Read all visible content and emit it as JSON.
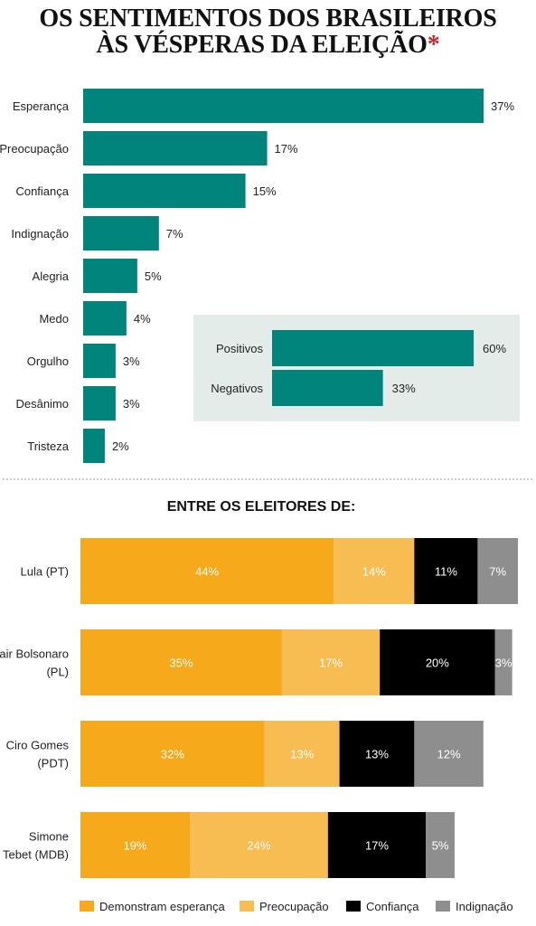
{
  "title": {
    "line1": "OS SENTIMENTOS DOS BRASILEIROS",
    "line2": "ÀS VÉSPERAS DA ELEIÇÃO",
    "asterisk": "*"
  },
  "colors": {
    "teal": "#00847b",
    "inset_bg": "#e3ece9",
    "esperanca": "#f5a91b",
    "preocupacao": "#f7bd52",
    "confianca": "#000000",
    "indignacao": "#8e8e8e"
  },
  "chart_data": [
    {
      "type": "bar",
      "orientation": "horizontal",
      "categories": [
        "Esperança",
        "Preocupação",
        "Confiança",
        "Indignação",
        "Alegria",
        "Medo",
        "Orgulho",
        "Desânimo",
        "Tristeza"
      ],
      "values": [
        37,
        17,
        15,
        7,
        5,
        4,
        3,
        3,
        2
      ],
      "labels": [
        "37%",
        "17%",
        "15%",
        "7%",
        "5%",
        "4%",
        "3%",
        "3%",
        "2%"
      ]
    },
    {
      "type": "bar",
      "orientation": "horizontal",
      "categories": [
        "Positivos",
        "Negativos"
      ],
      "values": [
        60,
        33
      ],
      "labels": [
        "60%",
        "33%"
      ]
    },
    {
      "type": "bar",
      "stacked": true,
      "orientation": "horizontal",
      "title": "ENTRE OS ELEITORES DE:",
      "categories": [
        [
          "Lula (PT)"
        ],
        [
          "Jair Bolsonaro",
          "(PL)"
        ],
        [
          "Ciro Gomes",
          "(PDT)"
        ],
        [
          "Simone",
          "Tebet (MDB)"
        ]
      ],
      "series": [
        {
          "name": "Demonstram esperança",
          "values": [
            44,
            35,
            32,
            19
          ],
          "labels": [
            "44%",
            "35%",
            "32%",
            "19%"
          ]
        },
        {
          "name": "Preocupação",
          "values": [
            14,
            17,
            13,
            24
          ],
          "labels": [
            "14%",
            "17%",
            "13%",
            "24%"
          ]
        },
        {
          "name": "Confiança",
          "values": [
            11,
            20,
            13,
            17
          ],
          "labels": [
            "11%",
            "20%",
            "13%",
            "17%"
          ]
        },
        {
          "name": "Indignação",
          "values": [
            7,
            3,
            12,
            5
          ],
          "labels": [
            "7%",
            "3%",
            "12%",
            "5%"
          ]
        }
      ],
      "legend": "bottom"
    }
  ]
}
